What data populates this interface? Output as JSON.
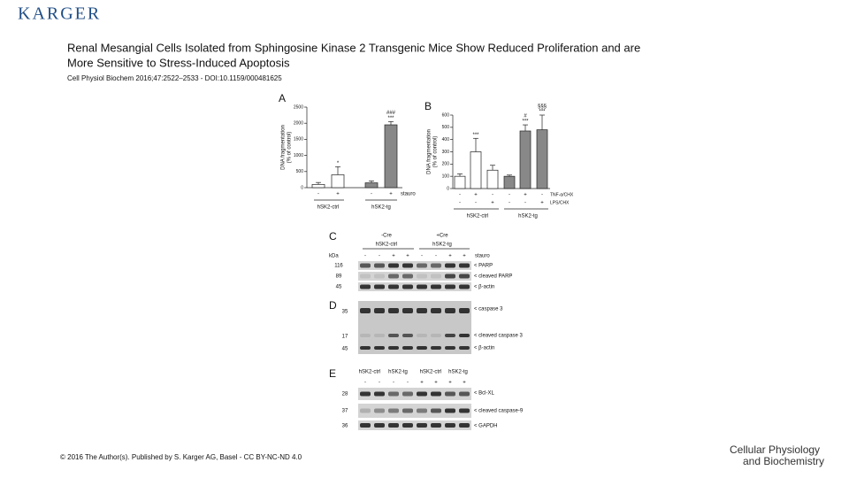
{
  "header": {
    "publisher": "KARGER",
    "title_lines": [
      "Renal Mesangial Cells Isolated from Sphingosine Kinase 2 Transgenic Mice Show Reduced Proliferation and are",
      "More Sensitive to Stress-Induced Apoptosis"
    ],
    "citation": "Cell Physiol Biochem 2016;47:2522–2533 - DOI:10.1159/000481625"
  },
  "figure": {
    "panel_a": {
      "letter": "A",
      "y_label": [
        "DNA fragmentation",
        "(% of control)"
      ],
      "ylim": [
        0,
        2500
      ],
      "yticks": [
        0,
        500,
        1000,
        1500,
        2000,
        2500
      ],
      "values": [
        100,
        400,
        150,
        1950
      ],
      "errors": [
        60,
        250,
        60,
        100
      ],
      "colors": [
        "#ffffff",
        "#ffffff",
        "#888888",
        "#888888"
      ],
      "annotations": [
        null,
        [
          "*"
        ],
        null,
        [
          "###",
          "***"
        ]
      ],
      "signs": [
        "-",
        "+",
        "-",
        "+"
      ],
      "row_label": "stauro",
      "groups": [
        "hSK2-ctrl",
        "hSK2-tg"
      ]
    },
    "panel_b": {
      "letter": "B",
      "y_label": [
        "DNA fragmentation",
        "(% of control)"
      ],
      "ylim": [
        0,
        600
      ],
      "yticks": [
        0,
        100,
        200,
        300,
        400,
        500,
        600
      ],
      "values": [
        100,
        300,
        150,
        100,
        470,
        480
      ],
      "errors": [
        20,
        110,
        40,
        10,
        50,
        120
      ],
      "colors": [
        "#ffffff",
        "#ffffff",
        "#ffffff",
        "#888888",
        "#888888",
        "#888888"
      ],
      "annotations": [
        null,
        [
          "***"
        ],
        null,
        null,
        [
          "#",
          "***"
        ],
        [
          "§§§",
          "***"
        ]
      ],
      "rows": [
        {
          "label": "TNF-α/CHX",
          "signs": [
            "-",
            "+",
            "-",
            "-",
            "+",
            "-"
          ]
        },
        {
          "label": "LPS/CHX",
          "signs": [
            "-",
            "-",
            "+",
            "-",
            "-",
            "+"
          ]
        }
      ],
      "groups": [
        "hSK2-ctrl",
        "hSK2-tg"
      ]
    },
    "panel_c": {
      "letter": "C",
      "headers": [
        "-Cre",
        "hSK2-ctrl",
        "+Cre",
        "hSK2-tg"
      ],
      "kda": "kDa",
      "signs": [
        "-",
        "-",
        "+",
        "+",
        "-",
        "-",
        "+",
        "+"
      ],
      "treatment": "stauro",
      "markers": [
        "116",
        "89",
        "45"
      ],
      "bands": [
        "< PARP",
        "< cleaved PARP",
        "< β-actin"
      ]
    },
    "panel_d": {
      "letter": "D",
      "markers": [
        "35",
        "17",
        "45"
      ],
      "bands": [
        "< caspase 3",
        "< cleaved caspase 3",
        "< β-actin"
      ]
    },
    "panel_e": {
      "letter": "E",
      "headers": [
        "hSK2-ctrl",
        "hSK2-tg",
        "hSK2-ctrl",
        "hSK2-tg"
      ],
      "signs": [
        "-",
        "-",
        "-",
        "-",
        "+",
        "+",
        "+",
        "+"
      ],
      "markers": [
        "28",
        "37",
        "36"
      ],
      "bands": [
        "< Bcl-XL",
        "< cleaved caspase-9",
        "< GAPDH"
      ]
    }
  },
  "footer": {
    "license": "© 2016 The Author(s). Published by S. Karger AG, Basel - CC BY-NC-ND 4.0",
    "journal": [
      "Cellular Physiology",
      "and Biochemistry"
    ]
  }
}
